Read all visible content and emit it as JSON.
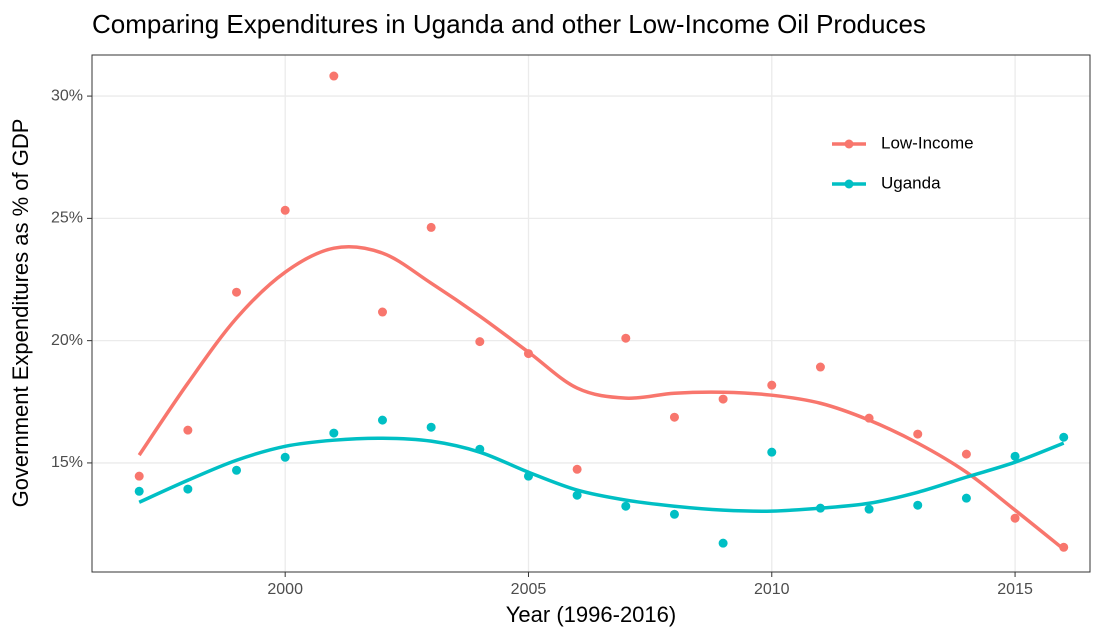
{
  "chart_data": {
    "type": "scatter",
    "title": "Comparing Expenditures in Uganda and other Low-Income Oil Produces",
    "x_label": "Year (1996-2016)",
    "y_label": "Government Expenditures as % of GDP",
    "x": [
      1997,
      1998,
      1999,
      2000,
      2001,
      2002,
      2003,
      2004,
      2005,
      2006,
      2007,
      2008,
      2009,
      2010,
      2011,
      2012,
      2013,
      2014,
      2015,
      2016
    ],
    "series": [
      {
        "name": "Low-Income",
        "color": "#f8766d",
        "values": [
          14.46,
          16.34,
          21.98,
          25.33,
          30.82,
          21.17,
          24.63,
          19.96,
          19.47,
          14.74,
          20.1,
          16.87,
          17.61,
          18.18,
          18.92,
          16.83,
          16.18,
          15.36,
          12.74,
          11.55
        ],
        "smooth": [
          15.32,
          18.26,
          20.92,
          22.8,
          23.78,
          23.58,
          22.35,
          21.0,
          19.53,
          18.06,
          17.65,
          17.85,
          17.89,
          17.77,
          17.44,
          16.75,
          15.81,
          14.62,
          13.07,
          11.47
        ]
      },
      {
        "name": "Uganda",
        "color": "#00bfc4",
        "values": [
          13.84,
          13.93,
          14.7,
          15.23,
          16.22,
          16.75,
          16.46,
          15.56,
          14.46,
          13.68,
          13.23,
          12.9,
          11.72,
          15.44,
          13.15,
          13.11,
          13.27,
          13.56,
          15.27,
          16.05
        ],
        "smooth": [
          13.39,
          14.29,
          15.11,
          15.68,
          15.93,
          16.01,
          15.89,
          15.44,
          14.62,
          13.89,
          13.48,
          13.23,
          13.07,
          13.03,
          13.15,
          13.35,
          13.8,
          14.42,
          15.03,
          15.81
        ]
      }
    ],
    "xlim": [
      1996.03,
      2016.54
    ],
    "xticks": [
      2000,
      2005,
      2010,
      2015
    ],
    "ylim": [
      10.54,
      31.68
    ],
    "yticks": [
      {
        "value": 15,
        "label": "15%"
      },
      {
        "value": 20,
        "label": "20%"
      },
      {
        "value": 25,
        "label": "25%"
      },
      {
        "value": 30,
        "label": "30%"
      }
    ],
    "grid": true,
    "legend_position": "top-right"
  }
}
